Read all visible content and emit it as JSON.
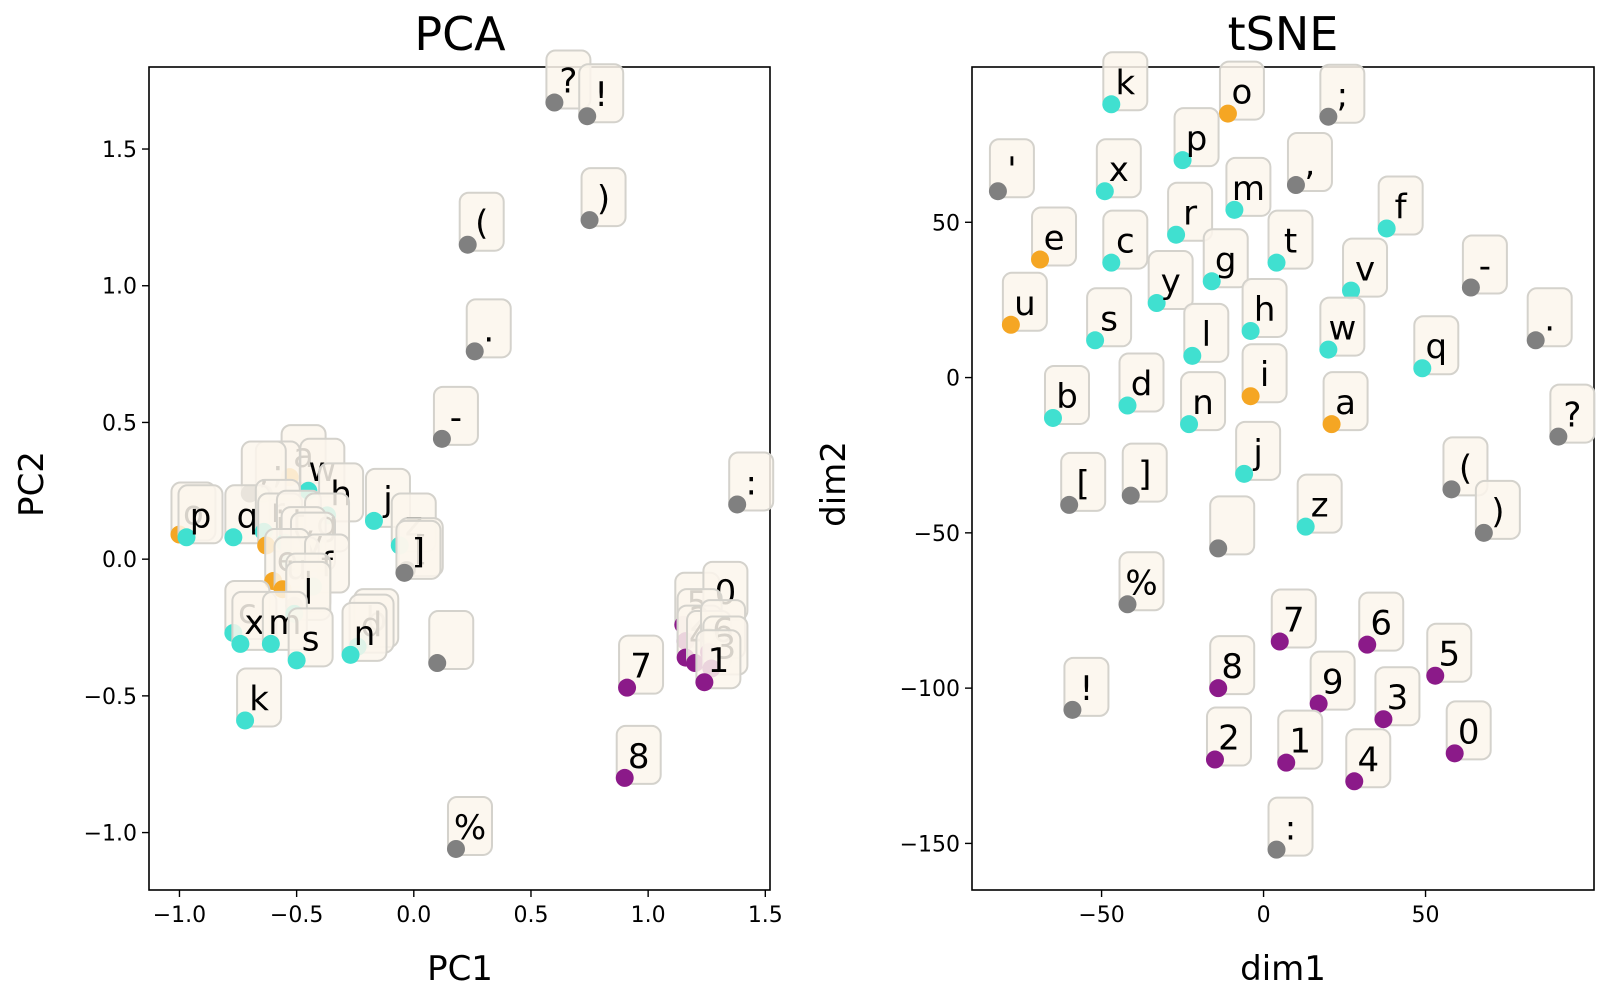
{
  "colors": {
    "letter": "#40e0d0",
    "vowel": "#f5a623",
    "punct": "#808080",
    "digit": "#8b1a89"
  },
  "chart_data": [
    {
      "type": "scatter",
      "title": "PCA",
      "xlabel": "PC1",
      "ylabel": "PC2",
      "xlim": [
        -1.13,
        1.52
      ],
      "ylim": [
        -1.21,
        1.8
      ],
      "xticks": [
        -1.0,
        -0.5,
        0.0,
        0.5,
        1.0,
        1.5
      ],
      "xtick_labels": [
        "−1.0",
        "−0.5",
        "0.0",
        "0.5",
        "1.0",
        "1.5"
      ],
      "yticks": [
        -1.0,
        -0.5,
        0.0,
        0.5,
        1.0,
        1.5
      ],
      "ytick_labels": [
        "−1.0",
        "−0.5",
        "0.0",
        "0.5",
        "1.0",
        "1.5"
      ],
      "grid": false,
      "points": [
        {
          "label": "?",
          "x": 0.6,
          "y": 1.67,
          "group": "punct"
        },
        {
          "label": "!",
          "x": 0.74,
          "y": 1.62,
          "group": "punct"
        },
        {
          "label": ")",
          "x": 0.75,
          "y": 1.24,
          "group": "punct"
        },
        {
          "label": "(",
          "x": 0.23,
          "y": 1.15,
          "group": "punct"
        },
        {
          "label": ".",
          "x": 0.26,
          "y": 0.76,
          "group": "punct"
        },
        {
          "label": "-",
          "x": 0.12,
          "y": 0.44,
          "group": "punct"
        },
        {
          "label": ":",
          "x": 1.38,
          "y": 0.2,
          "group": "punct"
        },
        {
          "label": "a",
          "x": -0.53,
          "y": 0.3,
          "group": "vowel"
        },
        {
          "label": "w",
          "x": -0.45,
          "y": 0.25,
          "group": "letter"
        },
        {
          "label": ";",
          "x": -0.64,
          "y": 0.24,
          "group": "punct"
        },
        {
          "label": ",",
          "x": -0.7,
          "y": 0.24,
          "group": "punct"
        },
        {
          "label": "h",
          "x": -0.37,
          "y": 0.16,
          "group": "letter"
        },
        {
          "label": "j",
          "x": -0.17,
          "y": 0.14,
          "group": "letter"
        },
        {
          "label": "o",
          "x": -1.0,
          "y": 0.09,
          "group": "vowel"
        },
        {
          "label": "p",
          "x": -0.97,
          "y": 0.08,
          "group": "letter"
        },
        {
          "label": "q",
          "x": -0.77,
          "y": 0.08,
          "group": "letter"
        },
        {
          "label": "r",
          "x": -0.64,
          "y": 0.1,
          "group": "letter"
        },
        {
          "label": "i",
          "x": -0.63,
          "y": 0.05,
          "group": "vowel"
        },
        {
          "label": "t",
          "x": -0.55,
          "y": 0.06,
          "group": "letter"
        },
        {
          "label": "g",
          "x": -0.43,
          "y": 0.05,
          "group": "letter"
        },
        {
          "label": "z",
          "x": -0.06,
          "y": 0.05,
          "group": "letter"
        },
        {
          "label": "y",
          "x": -0.53,
          "y": 0.0,
          "group": "letter"
        },
        {
          "label": "v",
          "x": -0.49,
          "y": -0.02,
          "group": "letter"
        },
        {
          "label": "[",
          "x": -0.03,
          "y": -0.04,
          "group": "punct"
        },
        {
          "label": "]",
          "x": -0.04,
          "y": -0.05,
          "group": "punct"
        },
        {
          "label": "e",
          "x": -0.6,
          "y": -0.08,
          "group": "vowel"
        },
        {
          "label": "u",
          "x": -0.56,
          "y": -0.11,
          "group": "vowel"
        },
        {
          "label": "f",
          "x": -0.43,
          "y": -0.1,
          "group": "letter"
        },
        {
          "label": "'",
          "x": -0.51,
          "y": -0.17,
          "group": "punct"
        },
        {
          "label": "l",
          "x": -0.51,
          "y": -0.2,
          "group": "letter"
        },
        {
          "label": "c",
          "x": -0.77,
          "y": -0.27,
          "group": "letter"
        },
        {
          "label": "x",
          "x": -0.74,
          "y": -0.31,
          "group": "letter"
        },
        {
          "label": "m",
          "x": -0.61,
          "y": -0.31,
          "group": "letter"
        },
        {
          "label": "s",
          "x": -0.5,
          "y": -0.37,
          "group": "letter"
        },
        {
          "label": "b",
          "x": -0.22,
          "y": -0.3,
          "group": "letter"
        },
        {
          "label": "d",
          "x": -0.24,
          "y": -0.32,
          "group": "letter"
        },
        {
          "label": "n",
          "x": -0.27,
          "y": -0.35,
          "group": "letter"
        },
        {
          "label": "",
          "x": 0.1,
          "y": -0.38,
          "group": "punct"
        },
        {
          "label": "k",
          "x": -0.72,
          "y": -0.59,
          "group": "letter"
        },
        {
          "label": "5",
          "x": 1.15,
          "y": -0.24,
          "group": "digit"
        },
        {
          "label": "0",
          "x": 1.27,
          "y": -0.2,
          "group": "digit"
        },
        {
          "label": "2",
          "x": 1.16,
          "y": -0.3,
          "group": "digit"
        },
        {
          "label": "4",
          "x": 1.16,
          "y": -0.36,
          "group": "digit"
        },
        {
          "label": "9",
          "x": 1.2,
          "y": -0.38,
          "group": "digit"
        },
        {
          "label": "6",
          "x": 1.26,
          "y": -0.34,
          "group": "digit"
        },
        {
          "label": "3",
          "x": 1.27,
          "y": -0.4,
          "group": "digit"
        },
        {
          "label": "1",
          "x": 1.24,
          "y": -0.45,
          "group": "digit"
        },
        {
          "label": "7",
          "x": 0.91,
          "y": -0.47,
          "group": "digit"
        },
        {
          "label": "8",
          "x": 0.9,
          "y": -0.8,
          "group": "digit"
        },
        {
          "label": "%",
          "x": 0.18,
          "y": -1.06,
          "group": "punct"
        }
      ]
    },
    {
      "type": "scatter",
      "title": "tSNE",
      "xlabel": "dim1",
      "ylabel": "dim2",
      "xlim": [
        -90,
        102
      ],
      "ylim": [
        -165,
        100
      ],
      "xticks": [
        -50,
        0,
        50
      ],
      "xtick_labels": [
        "−50",
        "0",
        "50"
      ],
      "yticks": [
        -150,
        -100,
        -50,
        0,
        50
      ],
      "ytick_labels": [
        "−150",
        "−100",
        "−50",
        "0",
        "50"
      ],
      "grid": false,
      "points": [
        {
          "label": "k",
          "x": -47,
          "y": 88,
          "group": "letter"
        },
        {
          "label": "o",
          "x": -11,
          "y": 85,
          "group": "vowel"
        },
        {
          "label": ";",
          "x": 20,
          "y": 84,
          "group": "punct"
        },
        {
          "label": "p",
          "x": -25,
          "y": 70,
          "group": "letter"
        },
        {
          "label": "'",
          "x": -82,
          "y": 60,
          "group": "punct"
        },
        {
          "label": "x",
          "x": -49,
          "y": 60,
          "group": "letter"
        },
        {
          "label": ",",
          "x": 10,
          "y": 62,
          "group": "punct"
        },
        {
          "label": "m",
          "x": -9,
          "y": 54,
          "group": "letter"
        },
        {
          "label": "f",
          "x": 38,
          "y": 48,
          "group": "letter"
        },
        {
          "label": "r",
          "x": -27,
          "y": 46,
          "group": "letter"
        },
        {
          "label": "e",
          "x": -69,
          "y": 38,
          "group": "vowel"
        },
        {
          "label": "c",
          "x": -47,
          "y": 37,
          "group": "letter"
        },
        {
          "label": "t",
          "x": 4,
          "y": 37,
          "group": "letter"
        },
        {
          "label": "g",
          "x": -16,
          "y": 31,
          "group": "letter"
        },
        {
          "label": "v",
          "x": 27,
          "y": 28,
          "group": "letter"
        },
        {
          "label": "-",
          "x": 64,
          "y": 29,
          "group": "punct"
        },
        {
          "label": "y",
          "x": -33,
          "y": 24,
          "group": "letter"
        },
        {
          "label": "u",
          "x": -78,
          "y": 17,
          "group": "vowel"
        },
        {
          "label": "h",
          "x": -4,
          "y": 15,
          "group": "letter"
        },
        {
          "label": "s",
          "x": -52,
          "y": 12,
          "group": "letter"
        },
        {
          "label": ".",
          "x": 84,
          "y": 12,
          "group": "punct"
        },
        {
          "label": "w",
          "x": 20,
          "y": 9,
          "group": "letter"
        },
        {
          "label": "l",
          "x": -22,
          "y": 7,
          "group": "letter"
        },
        {
          "label": "q",
          "x": 49,
          "y": 3,
          "group": "letter"
        },
        {
          "label": "i",
          "x": -4,
          "y": -6,
          "group": "vowel"
        },
        {
          "label": "d",
          "x": -42,
          "y": -9,
          "group": "letter"
        },
        {
          "label": "b",
          "x": -65,
          "y": -13,
          "group": "letter"
        },
        {
          "label": "a",
          "x": 21,
          "y": -15,
          "group": "vowel"
        },
        {
          "label": "n",
          "x": -23,
          "y": -15,
          "group": "letter"
        },
        {
          "label": "?",
          "x": 91,
          "y": -19,
          "group": "punct"
        },
        {
          "label": "j",
          "x": -6,
          "y": -31,
          "group": "letter"
        },
        {
          "label": "(",
          "x": 58,
          "y": -36,
          "group": "punct"
        },
        {
          "label": "[",
          "x": -60,
          "y": -41,
          "group": "punct"
        },
        {
          "label": "]",
          "x": -41,
          "y": -38,
          "group": "punct"
        },
        {
          "label": "z",
          "x": 13,
          "y": -48,
          "group": "letter"
        },
        {
          "label": ")",
          "x": 68,
          "y": -50,
          "group": "punct"
        },
        {
          "label": "",
          "x": -14,
          "y": -55,
          "group": "punct"
        },
        {
          "label": "%",
          "x": -42,
          "y": -73,
          "group": "punct"
        },
        {
          "label": "7",
          "x": 5,
          "y": -85,
          "group": "digit"
        },
        {
          "label": "6",
          "x": 32,
          "y": -86,
          "group": "digit"
        },
        {
          "label": "5",
          "x": 53,
          "y": -96,
          "group": "digit"
        },
        {
          "label": "8",
          "x": -14,
          "y": -100,
          "group": "digit"
        },
        {
          "label": "9",
          "x": 17,
          "y": -105,
          "group": "digit"
        },
        {
          "label": "3",
          "x": 37,
          "y": -110,
          "group": "digit"
        },
        {
          "label": "!",
          "x": -59,
          "y": -107,
          "group": "punct"
        },
        {
          "label": "2",
          "x": -15,
          "y": -123,
          "group": "digit"
        },
        {
          "label": "1",
          "x": 7,
          "y": -124,
          "group": "digit"
        },
        {
          "label": "0",
          "x": 59,
          "y": -121,
          "group": "digit"
        },
        {
          "label": "4",
          "x": 28,
          "y": -130,
          "group": "digit"
        },
        {
          "label": ":",
          "x": 4,
          "y": -152,
          "group": "punct"
        }
      ]
    }
  ]
}
